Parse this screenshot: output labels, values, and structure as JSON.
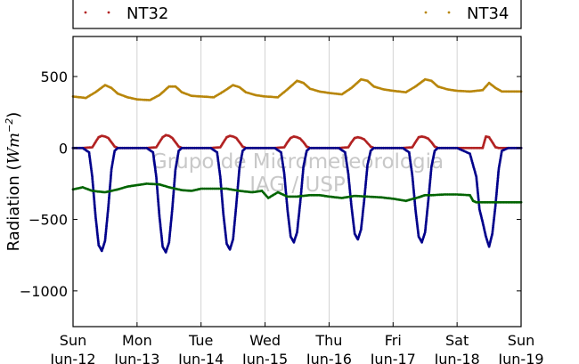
{
  "chart_data": {
    "type": "scatter",
    "ylabel": "Radiation (Wm⁻²)",
    "ylabel_parts": {
      "prefix": "Radiation (",
      "unit": "Wm",
      "exponent": "−2",
      "suffix": ")"
    },
    "ylim": [
      -1250,
      780
    ],
    "yticks": [
      500,
      0,
      -500,
      -1000
    ],
    "ytick_labels": [
      "500",
      "0",
      "−500",
      "−1000"
    ],
    "xlim": [
      0,
      7
    ],
    "xticks": [
      0,
      1,
      2,
      3,
      4,
      5,
      6,
      7
    ],
    "xtick_labels": [
      [
        "Sun",
        "Jun-12"
      ],
      [
        "Mon",
        "Jun-13"
      ],
      [
        "Tue",
        "Jun-14"
      ],
      [
        "Wed",
        "Jun-15"
      ],
      [
        "Thu",
        "Jun-16"
      ],
      [
        "Fri",
        "Jun-17"
      ],
      [
        "Sat",
        "Jun-18"
      ],
      [
        "Sun",
        "Jun-19"
      ]
    ],
    "grid": "vertical",
    "legend_placement": "top, above plot",
    "watermark": [
      "Grupo de Micrometeorologia",
      "IAG / USP"
    ],
    "series": [
      {
        "name": "NT32",
        "color": "#b22222",
        "marker": "dot",
        "legend": true,
        "x": [
          0.0,
          0.15,
          0.3,
          0.35,
          0.4,
          0.45,
          0.5,
          0.55,
          0.6,
          0.65,
          0.7,
          0.8,
          0.9,
          1.0,
          1.15,
          1.3,
          1.35,
          1.4,
          1.45,
          1.5,
          1.55,
          1.6,
          1.65,
          1.7,
          1.8,
          1.9,
          2.0,
          2.15,
          2.3,
          2.35,
          2.4,
          2.45,
          2.5,
          2.55,
          2.6,
          2.65,
          2.7,
          2.8,
          2.9,
          3.0,
          3.15,
          3.3,
          3.35,
          3.4,
          3.45,
          3.5,
          3.55,
          3.6,
          3.65,
          3.7,
          3.8,
          3.9,
          4.0,
          4.15,
          4.3,
          4.35,
          4.4,
          4.45,
          4.5,
          4.55,
          4.6,
          4.65,
          4.7,
          4.8,
          4.9,
          5.0,
          5.15,
          5.3,
          5.35,
          5.4,
          5.45,
          5.5,
          5.55,
          5.6,
          5.65,
          5.7,
          5.8,
          5.9,
          6.0,
          6.15,
          6.3,
          6.4,
          6.45,
          6.5,
          6.55,
          6.6,
          6.65,
          6.7,
          6.8,
          7.0
        ],
        "y": [
          0,
          0,
          5,
          40,
          75,
          85,
          80,
          70,
          40,
          10,
          0,
          0,
          0,
          0,
          0,
          5,
          40,
          75,
          90,
          85,
          70,
          40,
          10,
          0,
          0,
          0,
          0,
          0,
          5,
          40,
          75,
          85,
          80,
          70,
          40,
          10,
          0,
          0,
          0,
          0,
          0,
          5,
          40,
          70,
          80,
          75,
          65,
          40,
          10,
          0,
          0,
          0,
          0,
          0,
          5,
          40,
          70,
          75,
          70,
          60,
          35,
          10,
          0,
          0,
          0,
          0,
          0,
          5,
          40,
          75,
          80,
          75,
          65,
          40,
          10,
          0,
          0,
          0,
          0,
          0,
          0,
          0,
          80,
          75,
          40,
          5,
          0,
          0,
          0,
          0
        ]
      },
      {
        "name": "NT34",
        "color": "#b8860b",
        "marker": "dot",
        "legend": true,
        "x": [
          0.0,
          0.2,
          0.35,
          0.5,
          0.6,
          0.7,
          0.85,
          1.0,
          1.2,
          1.35,
          1.5,
          1.6,
          1.7,
          1.85,
          2.0,
          2.2,
          2.35,
          2.5,
          2.6,
          2.7,
          2.85,
          3.0,
          3.2,
          3.35,
          3.5,
          3.6,
          3.7,
          3.85,
          4.0,
          4.2,
          4.35,
          4.5,
          4.6,
          4.7,
          4.85,
          5.0,
          5.2,
          5.35,
          5.5,
          5.6,
          5.7,
          5.85,
          6.0,
          6.2,
          6.4,
          6.5,
          6.6,
          6.7,
          6.85,
          7.0
        ],
        "y": [
          360,
          350,
          390,
          440,
          420,
          380,
          355,
          340,
          335,
          370,
          430,
          430,
          390,
          365,
          360,
          355,
          395,
          440,
          425,
          390,
          370,
          360,
          355,
          410,
          470,
          455,
          415,
          395,
          385,
          375,
          420,
          480,
          470,
          430,
          410,
          400,
          390,
          430,
          480,
          470,
          430,
          410,
          400,
          395,
          405,
          455,
          420,
          395,
          395,
          395
        ]
      },
      {
        "name": "",
        "color": "#00008b",
        "marker": "dot",
        "legend": false,
        "x": [
          0.0,
          0.15,
          0.25,
          0.3,
          0.35,
          0.4,
          0.45,
          0.5,
          0.55,
          0.6,
          0.65,
          0.7,
          0.8,
          1.0,
          1.15,
          1.25,
          1.3,
          1.35,
          1.4,
          1.45,
          1.5,
          1.55,
          1.6,
          1.65,
          1.7,
          1.8,
          2.0,
          2.15,
          2.25,
          2.3,
          2.35,
          2.4,
          2.45,
          2.5,
          2.55,
          2.6,
          2.65,
          2.7,
          2.8,
          3.0,
          3.15,
          3.25,
          3.3,
          3.35,
          3.4,
          3.45,
          3.5,
          3.55,
          3.6,
          3.65,
          3.7,
          3.8,
          4.0,
          4.15,
          4.25,
          4.3,
          4.35,
          4.4,
          4.45,
          4.5,
          4.55,
          4.6,
          4.65,
          4.7,
          4.8,
          5.0,
          5.15,
          5.25,
          5.3,
          5.35,
          5.4,
          5.45,
          5.5,
          5.55,
          5.6,
          5.65,
          5.7,
          5.8,
          6.0,
          6.2,
          6.3,
          6.35,
          6.4,
          6.45,
          6.5,
          6.55,
          6.6,
          6.65,
          6.7,
          6.8,
          7.0
        ],
        "y": [
          0,
          0,
          -30,
          -200,
          -470,
          -680,
          -720,
          -650,
          -420,
          -150,
          -20,
          0,
          0,
          0,
          0,
          -30,
          -200,
          -480,
          -690,
          -730,
          -660,
          -430,
          -150,
          -20,
          0,
          0,
          0,
          0,
          -30,
          -200,
          -470,
          -670,
          -710,
          -640,
          -400,
          -140,
          -20,
          0,
          0,
          0,
          0,
          -30,
          -180,
          -430,
          -620,
          -660,
          -590,
          -380,
          -130,
          -20,
          0,
          0,
          0,
          0,
          -30,
          -180,
          -410,
          -600,
          -640,
          -570,
          -360,
          -120,
          -20,
          0,
          0,
          0,
          0,
          -30,
          -190,
          -430,
          -620,
          -660,
          -590,
          -370,
          -130,
          -20,
          0,
          0,
          0,
          -40,
          -200,
          -430,
          -520,
          -620,
          -690,
          -600,
          -400,
          -150,
          -20,
          0,
          0
        ]
      },
      {
        "name": "",
        "color": "#006400",
        "marker": "dot",
        "legend": false,
        "x": [
          0.0,
          0.15,
          0.3,
          0.5,
          0.7,
          0.85,
          1.0,
          1.15,
          1.35,
          1.5,
          1.7,
          1.85,
          2.0,
          2.2,
          2.4,
          2.6,
          2.8,
          2.95,
          3.05,
          3.2,
          3.35,
          3.5,
          3.7,
          3.85,
          4.0,
          4.2,
          4.4,
          4.6,
          4.8,
          5.0,
          5.2,
          5.4,
          5.5,
          5.6,
          5.8,
          6.0,
          6.2,
          6.25,
          6.3,
          6.5,
          6.7,
          7.0
        ],
        "y": [
          -290,
          -275,
          -300,
          -310,
          -290,
          -270,
          -260,
          -250,
          -255,
          -275,
          -295,
          -300,
          -285,
          -285,
          -285,
          -300,
          -310,
          -300,
          -350,
          -310,
          -340,
          -340,
          -330,
          -330,
          -340,
          -350,
          -335,
          -340,
          -345,
          -355,
          -370,
          -345,
          -330,
          -330,
          -325,
          -325,
          -330,
          -370,
          -380,
          -380,
          -380,
          -380
        ]
      }
    ]
  }
}
